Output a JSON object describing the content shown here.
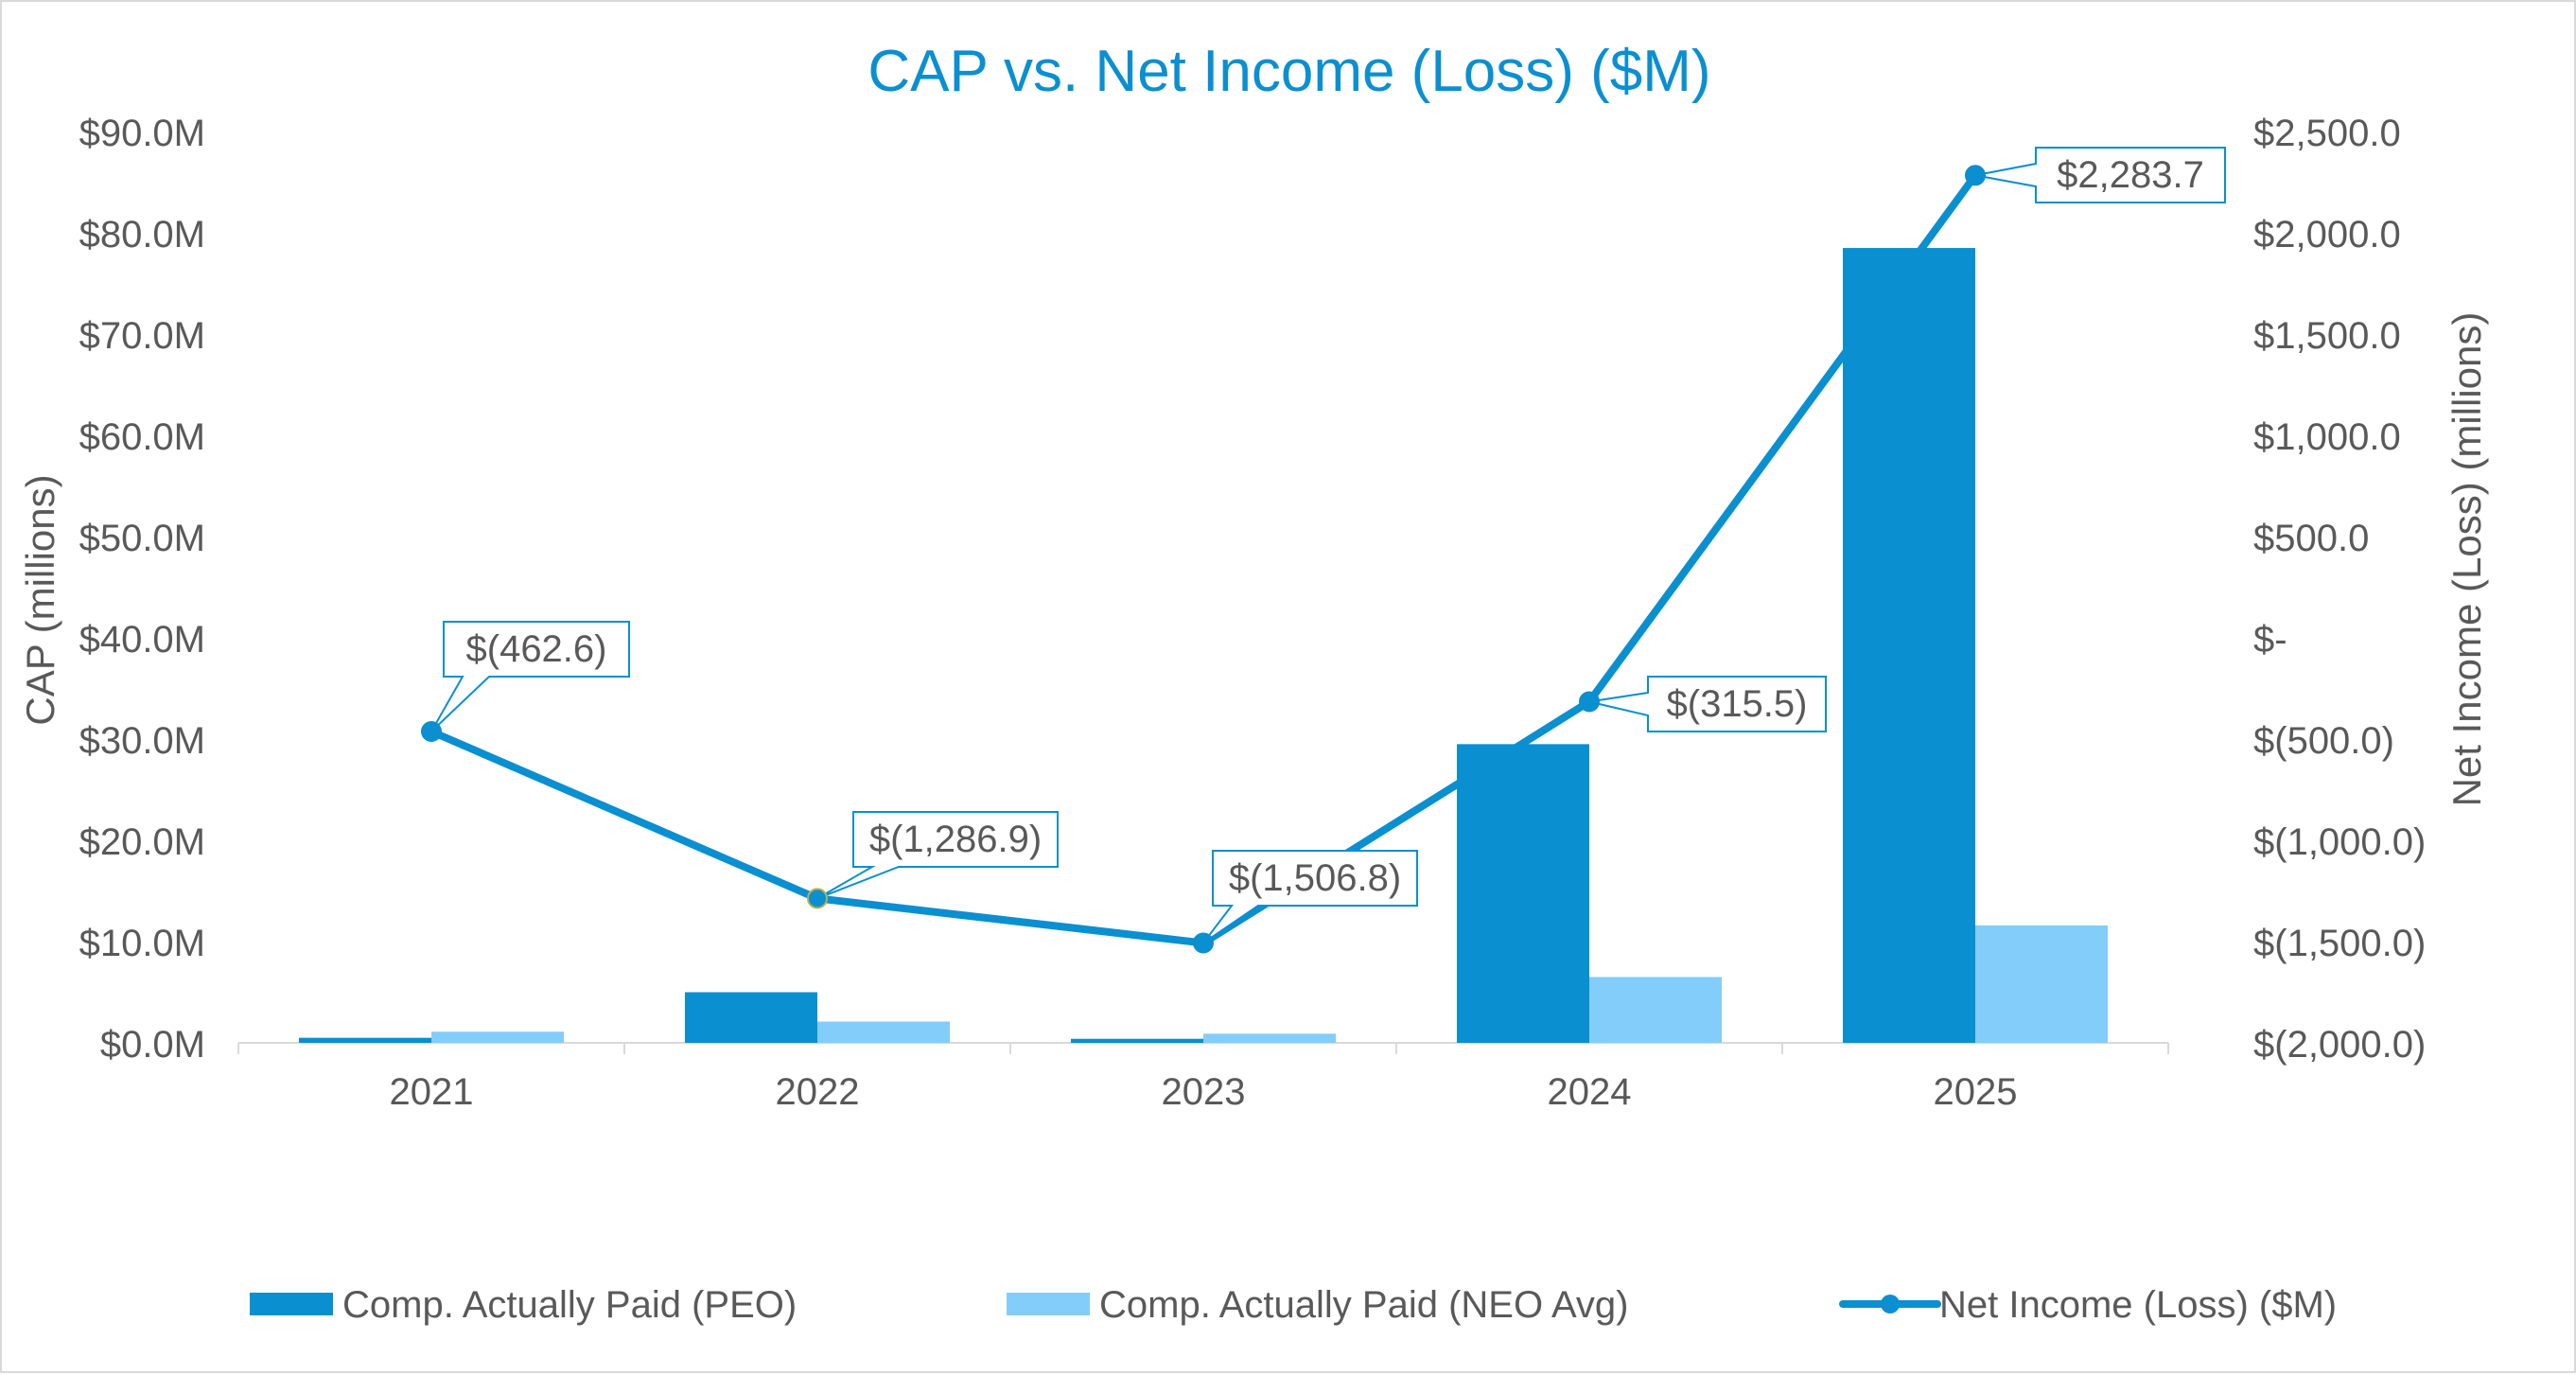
{
  "chart_data": {
    "type": "bar",
    "title": "CAP vs. Net Income (Loss) ($M)",
    "categories": [
      "2021",
      "2022",
      "2023",
      "2024",
      "2025"
    ],
    "ylabel": "CAP (millions)",
    "y2label": "Net Income (Loss) (millions)",
    "ylim": [
      0,
      90
    ],
    "y2lim": [
      -2000,
      2500
    ],
    "y_ticks": [
      {
        "value": 0,
        "label": "$0.0M"
      },
      {
        "value": 10,
        "label": "$10.0M"
      },
      {
        "value": 20,
        "label": "$20.0M"
      },
      {
        "value": 30,
        "label": "$30.0M"
      },
      {
        "value": 40,
        "label": "$40.0M"
      },
      {
        "value": 50,
        "label": "$50.0M"
      },
      {
        "value": 60,
        "label": "$60.0M"
      },
      {
        "value": 70,
        "label": "$70.0M"
      },
      {
        "value": 80,
        "label": "$80.0M"
      },
      {
        "value": 90,
        "label": "$90.0M"
      }
    ],
    "y2_ticks": [
      {
        "value": -2000,
        "label": "$(2,000.0)"
      },
      {
        "value": -1500,
        "label": "$(1,500.0)"
      },
      {
        "value": -1000,
        "label": "$(1,000.0)"
      },
      {
        "value": -500,
        "label": "$(500.0)"
      },
      {
        "value": 0,
        "label": "$-"
      },
      {
        "value": 500,
        "label": "$500.0"
      },
      {
        "value": 1000,
        "label": "$1,000.0"
      },
      {
        "value": 1500,
        "label": "$1,500.0"
      },
      {
        "value": 2000,
        "label": "$2,000.0"
      },
      {
        "value": 2500,
        "label": "$2,500.0"
      }
    ],
    "series": [
      {
        "name": "Comp. Actually Paid (PEO)",
        "kind": "bar",
        "axis": "left",
        "color": "#0A8FD1",
        "values": [
          0.5,
          5.0,
          0.4,
          29.5,
          78.5
        ]
      },
      {
        "name": "Comp. Actually Paid (NEO Avg)",
        "kind": "bar",
        "axis": "left",
        "color": "#83CDFA",
        "values": [
          1.1,
          2.1,
          0.9,
          6.5,
          11.6
        ]
      },
      {
        "name": "Net Income (Loss) ($M)",
        "kind": "line",
        "axis": "right",
        "color": "#0A8FD1",
        "values": [
          -462.6,
          -1286.9,
          -1506.8,
          -315.5,
          2283.7
        ],
        "labels": [
          "$(462.6)",
          "$(1,286.9)",
          "$(1,506.8)",
          "$(315.5)",
          "$2,283.7"
        ]
      }
    ],
    "legend": "bottom",
    "grid": false
  }
}
